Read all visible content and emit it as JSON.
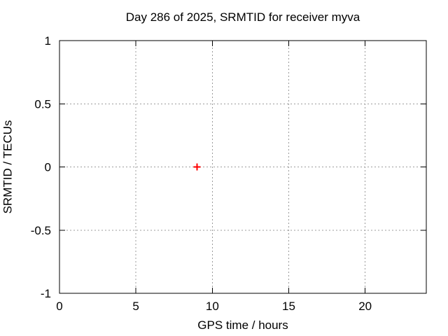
{
  "chart_data": {
    "type": "scatter",
    "title": "Day 286 of 2025, SRMTID for receiver myva",
    "xlabel": "GPS time / hours",
    "ylabel": "SRMTID / TECUs",
    "xlim": [
      0,
      24
    ],
    "ylim": [
      -1,
      1
    ],
    "xticks": {
      "values": [
        0,
        5,
        10,
        15,
        20
      ],
      "labels": [
        "0",
        "5",
        "10",
        "15",
        "20"
      ]
    },
    "yticks": {
      "values": [
        1,
        0.5,
        0,
        -0.5,
        -1
      ],
      "labels": [
        "1",
        "0.5",
        "0",
        "-0.5",
        "-1"
      ]
    },
    "grid": {
      "on": true,
      "style": "dotted",
      "color": "#9b9b9b"
    },
    "legend": "none",
    "background_color": "#ffffff",
    "axis_color": "#000000",
    "series": [
      {
        "marker": "plus",
        "color": "#ff0000",
        "points": [
          [
            9,
            0
          ]
        ]
      }
    ]
  }
}
